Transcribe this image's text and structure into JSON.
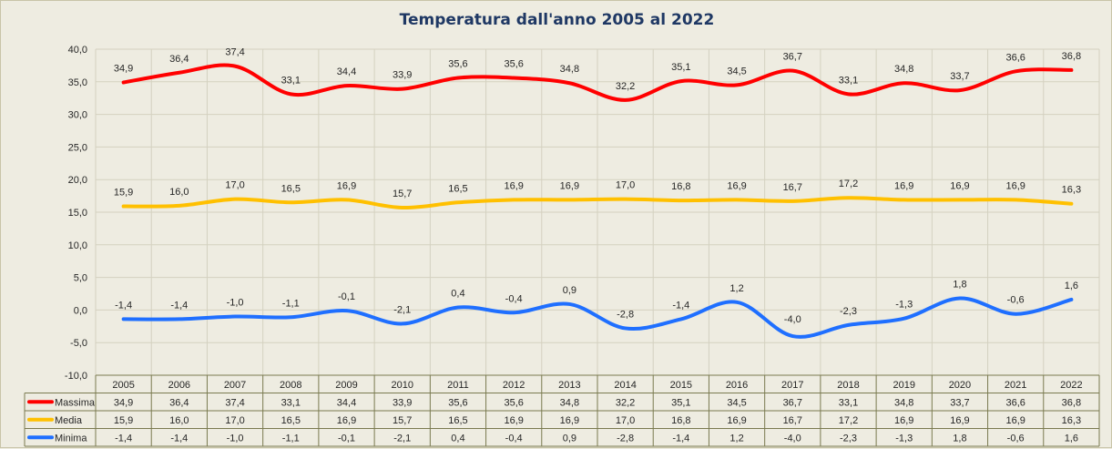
{
  "chart_data": {
    "type": "line",
    "title": "Temperatura dall'anno 2005 al 2022",
    "categories": [
      "2005",
      "2006",
      "2007",
      "2008",
      "2009",
      "2010",
      "2011",
      "2012",
      "2013",
      "2014",
      "2015",
      "2016",
      "2017",
      "2018",
      "2019",
      "2020",
      "2021",
      "2022"
    ],
    "ylim": [
      -10,
      40
    ],
    "y_ticks": [
      "40,0",
      "35,0",
      "30,0",
      "25,0",
      "20,0",
      "15,0",
      "10,0",
      "5,0",
      "0,0",
      "-5,0",
      "-10,0"
    ],
    "grid": true,
    "legend": "data-table-below",
    "series": [
      {
        "name": "Massima",
        "color": "#ff0000",
        "values": [
          34.9,
          36.4,
          37.4,
          33.1,
          34.4,
          33.9,
          35.6,
          35.6,
          34.8,
          32.2,
          35.1,
          34.5,
          36.7,
          33.1,
          34.8,
          33.7,
          36.6,
          36.8
        ],
        "labels": [
          "34,9",
          "36,4",
          "37,4",
          "33,1",
          "34,4",
          "33,9",
          "35,6",
          "35,6",
          "34,8",
          "32,2",
          "35,1",
          "34,5",
          "36,7",
          "33,1",
          "34,8",
          "33,7",
          "36,6",
          "36,8"
        ]
      },
      {
        "name": "Media",
        "color": "#ffc000",
        "values": [
          15.9,
          16.0,
          17.0,
          16.5,
          16.9,
          15.7,
          16.5,
          16.9,
          16.9,
          17.0,
          16.8,
          16.9,
          16.7,
          17.2,
          16.9,
          16.9,
          16.9,
          16.3
        ],
        "labels": [
          "15,9",
          "16,0",
          "17,0",
          "16,5",
          "16,9",
          "15,7",
          "16,5",
          "16,9",
          "16,9",
          "17,0",
          "16,8",
          "16,9",
          "16,7",
          "17,2",
          "16,9",
          "16,9",
          "16,9",
          "16,3"
        ]
      },
      {
        "name": "Minima",
        "color": "#1f6fff",
        "values": [
          -1.4,
          -1.4,
          -1.0,
          -1.1,
          -0.1,
          -2.1,
          0.4,
          -0.4,
          0.9,
          -2.8,
          -1.4,
          1.2,
          -4.0,
          -2.3,
          -1.3,
          1.8,
          -0.6,
          1.6
        ],
        "labels": [
          "-1,4",
          "-1,4",
          "-1,0",
          "-1,1",
          "-0,1",
          "-2,1",
          "0,4",
          "-0,4",
          "0,9",
          "-2,8",
          "-1,4",
          "1,2",
          "-4,0",
          "-2,3",
          "-1,3",
          "1,8",
          "-0,6",
          "1,6"
        ]
      }
    ]
  }
}
